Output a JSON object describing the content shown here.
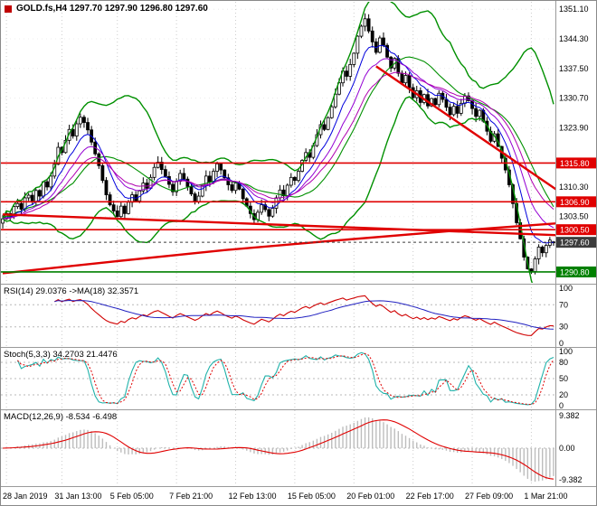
{
  "header": {
    "title": "GOLD.fs,H4 1297.70 1297.90 1296.80 1297.60"
  },
  "colors": {
    "background": "#ffffff",
    "grid": "#cccccc",
    "grid_h": "#ececec",
    "candle_up_fill": "#ffffff",
    "candle_down_fill": "#000000",
    "candle_outline": "#000000",
    "bollinger": "#009000",
    "ema_fast": "#0000dd",
    "ema_mid": "#9400d3",
    "ema_slow": "#b000b0",
    "level_red": "#e00000",
    "level_green": "#008000",
    "current_price_tag": "#3c3c3c",
    "rsi_line": "#d00000",
    "rsi_ma": "#2020c0",
    "stoch_k": "#20b2aa",
    "stoch_d": "#e00000",
    "macd_hist": "#bdbdbd",
    "macd_signal": "#e00000",
    "separator": "#9a9a9a",
    "dotted_level": "#b8b8b8",
    "axis_text": "#000000"
  },
  "chart_data": {
    "type": "candlestick",
    "symbol": "GOLD.fs",
    "timeframe": "H4",
    "ohlc": {
      "open": 1297.7,
      "high": 1297.9,
      "low": 1296.8,
      "close": 1297.6
    },
    "ylim": [
      1288.3,
      1352.8
    ],
    "first_open": 1302.0,
    "closes": [
      1303.0,
      1304.2,
      1303.5,
      1305.8,
      1306.5,
      1305.2,
      1307.8,
      1308.4,
      1307.0,
      1309.5,
      1308.2,
      1311.5,
      1310.3,
      1312.8,
      1315.5,
      1319.4,
      1318.2,
      1321.0,
      1323.5,
      1322.0,
      1324.8,
      1326.3,
      1325.1,
      1323.4,
      1320.6,
      1317.9,
      1315.2,
      1311.8,
      1308.5,
      1306.2,
      1304.8,
      1303.5,
      1305.9,
      1304.2,
      1306.8,
      1308.5,
      1307.1,
      1309.4,
      1311.2,
      1310.0,
      1312.5,
      1314.8,
      1316.0,
      1314.3,
      1312.7,
      1310.9,
      1309.2,
      1311.6,
      1313.4,
      1312.1,
      1310.4,
      1308.7,
      1306.9,
      1308.2,
      1310.6,
      1312.8,
      1311.5,
      1313.9,
      1315.6,
      1314.2,
      1312.4,
      1310.8,
      1309.5,
      1311.2,
      1309.8,
      1307.6,
      1305.9,
      1304.2,
      1302.8,
      1304.5,
      1306.2,
      1305.1,
      1303.6,
      1305.4,
      1307.8,
      1309.6,
      1308.3,
      1310.7,
      1312.5,
      1311.8,
      1313.9,
      1316.4,
      1318.2,
      1317.1,
      1319.8,
      1322.3,
      1324.6,
      1323.5,
      1326.2,
      1328.7,
      1331.6,
      1334.2,
      1336.9,
      1335.7,
      1338.4,
      1341.0,
      1344.9,
      1347.2,
      1348.9,
      1346.1,
      1343.6,
      1341.2,
      1344.5,
      1342.8,
      1340.1,
      1337.6,
      1339.8,
      1336.4,
      1334.2,
      1335.9,
      1333.1,
      1330.8,
      1332.4,
      1329.7,
      1331.5,
      1328.9,
      1330.6,
      1329.2,
      1331.8,
      1330.4,
      1328.6,
      1326.9,
      1328.8,
      1327.2,
      1329.5,
      1331.2,
      1330.1,
      1328.3,
      1326.5,
      1327.9,
      1325.4,
      1323.1,
      1320.8,
      1322.5,
      1319.6,
      1316.9,
      1314.2,
      1310.8,
      1306.5,
      1302.1,
      1298.4,
      1294.2,
      1291.5,
      1290.9,
      1293.8,
      1296.5,
      1295.2,
      1296.9,
      1298.1,
      1297.6
    ],
    "x_labels": [
      {
        "label": "28 Jan 2019",
        "index": 1
      },
      {
        "label": "31 Jan 13:00",
        "index": 16
      },
      {
        "label": "5 Feb 05:00",
        "index": 31
      },
      {
        "label": "7 Feb 21:00",
        "index": 47
      },
      {
        "label": "12 Feb 13:00",
        "index": 63
      },
      {
        "label": "15 Feb 05:00",
        "index": 79
      },
      {
        "label": "20 Feb 01:00",
        "index": 95
      },
      {
        "label": "22 Feb 17:00",
        "index": 111
      },
      {
        "label": "27 Feb 09:00",
        "index": 127
      },
      {
        "label": "1 Mar 21:00",
        "index": 143
      }
    ],
    "y_ticks": [
      "1351.10",
      "1344.30",
      "1337.50",
      "1330.70",
      "1323.90",
      "1310.30",
      "1303.50"
    ],
    "levels": [
      {
        "label": "1315.80",
        "price": 1315.8,
        "color": "#e00000"
      },
      {
        "label": "1306.90",
        "price": 1306.9,
        "color": "#e00000"
      },
      {
        "label": "1300.50",
        "price": 1300.5,
        "color": "#e00000"
      },
      {
        "label": "1290.80",
        "price": 1290.8,
        "color": "#008000"
      }
    ],
    "current_price": {
      "label": "1297.60",
      "price": 1297.6
    },
    "trendlines": [
      {
        "name": "descending-resistance-trendline",
        "color": "#e00000",
        "width": 2.4,
        "points": [
          [
            101,
            1338.0
          ],
          [
            151,
            1309.0
          ]
        ]
      },
      {
        "name": "long-descending-trendline",
        "color": "#e00000",
        "width": 2.4,
        "points": [
          [
            0,
            1304.0
          ],
          [
            151,
            1299.2
          ]
        ]
      },
      {
        "name": "rising-support-curve",
        "color": "#e00000",
        "width": 2.4,
        "points": [
          [
            0,
            1290.5
          ],
          [
            30,
            1293.2
          ],
          [
            60,
            1295.8
          ],
          [
            90,
            1298.0
          ],
          [
            120,
            1300.1
          ],
          [
            151,
            1302.0
          ]
        ]
      }
    ],
    "indicators": {
      "bollinger": {
        "period": 20,
        "deviation": 2
      },
      "emas": [
        8,
        14,
        21
      ],
      "rsi": {
        "label": "RSI(14) 29.0376  ->MA(18) 32.3571",
        "period": 14,
        "ma_period": 18,
        "scale": [
          "100",
          "70",
          "30",
          "0"
        ],
        "level_lines": [
          70,
          30
        ],
        "ylim": [
          0,
          100
        ]
      },
      "stoch": {
        "label": "Stoch(5,3,3) 34.2703 21.4476",
        "k": 5,
        "slowing": 3,
        "d": 3,
        "scale": [
          "100",
          "80",
          "50",
          "20",
          "0"
        ],
        "level_lines": [
          80,
          50,
          20
        ],
        "ylim": [
          0,
          100
        ]
      },
      "macd": {
        "label": "MACD(12,26,9) -8.534 -6.498",
        "fast": 12,
        "slow": 26,
        "signal": 9,
        "scale": [
          "9.382",
          "0.00",
          "-9.382"
        ]
      }
    }
  }
}
